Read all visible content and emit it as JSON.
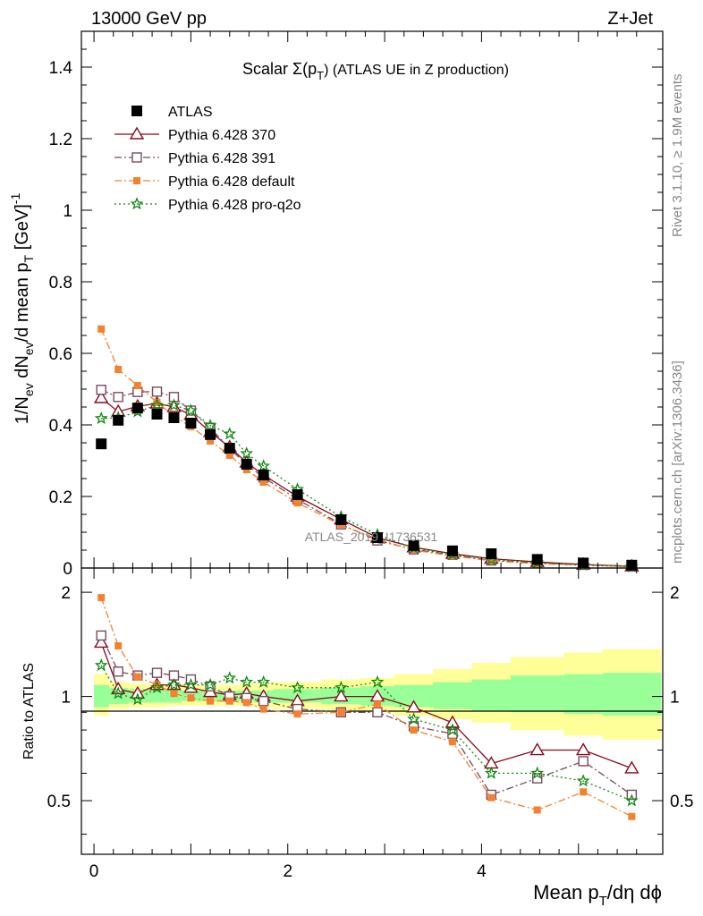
{
  "header": {
    "left": "13000 GeV pp",
    "right": "Z+Jet",
    "plot_title_main": "Scalar Σ(p",
    "plot_title_sub": "T",
    "plot_title_rest": ") (ATLAS UE in Z production)",
    "watermark": "ATLAS_2019_I1736531",
    "side_rivet": "Rivet 3.1.10, ≥ 1.9M events",
    "side_mcplots": "mcplots.cern.ch [arXiv:1306.3436]"
  },
  "axes": {
    "ylabel_main": "1/N_ev dN_ev/d mean p_T [GeV]^-1",
    "ylabel_ratio": "Ratio to ATLAS",
    "xlabel": "Mean p_T/dη dϕ"
  },
  "colors": {
    "ATLAS": "#000000",
    "p370": "#8b0a1c",
    "p391": "#7a4b5e",
    "pdefault": "#f5802e",
    "pq2o": "#0f8a0f",
    "band_inner": "#99ff99",
    "band_outer": "#ffff99"
  },
  "chart_data": [
    {
      "type": "scatter",
      "title": "Scalar Σ(p_T) (ATLAS UE in Z production)",
      "xlim": [
        -0.13,
        5.87
      ],
      "ylim": [
        0,
        1.5
      ],
      "yticks": [
        "0",
        "0.2",
        "0.4",
        "0.6",
        "0.8",
        "1",
        "1.2",
        "1.4"
      ],
      "x": [
        0.075,
        0.25,
        0.45,
        0.65,
        0.825,
        1.0,
        1.2,
        1.4,
        1.575,
        1.75,
        2.1,
        2.55,
        2.925,
        3.3,
        3.7,
        4.1,
        4.575,
        5.05,
        5.55
      ],
      "series": [
        {
          "name": "ATLAS",
          "key": "ATLAS",
          "marker": "square-filled",
          "values": [
            0.347,
            0.413,
            0.447,
            0.43,
            0.42,
            0.405,
            0.373,
            0.335,
            0.29,
            0.26,
            0.205,
            0.135,
            0.085,
            0.063,
            0.048,
            0.04,
            0.024,
            0.014,
            0.008
          ]
        },
        {
          "name": "Pythia 6.428 370",
          "key": "p370",
          "marker": "triangle-open",
          "values": [
            0.475,
            0.437,
            0.452,
            0.46,
            0.45,
            0.428,
            0.38,
            0.338,
            0.295,
            0.26,
            0.2,
            0.136,
            0.085,
            0.058,
            0.04,
            0.026,
            0.017,
            0.01,
            0.005
          ]
        },
        {
          "name": "Pythia 6.428 391",
          "key": "p391",
          "marker": "square-open",
          "values": [
            0.498,
            0.478,
            0.492,
            0.493,
            0.478,
            0.44,
            0.392,
            0.333,
            0.29,
            0.253,
            0.192,
            0.122,
            0.077,
            0.052,
            0.037,
            0.021,
            0.014,
            0.009,
            0.004
          ]
        },
        {
          "name": "Pythia 6.428 default",
          "key": "pdefault",
          "marker": "square-filled-small",
          "values": [
            0.668,
            0.555,
            0.51,
            0.463,
            0.425,
            0.395,
            0.355,
            0.315,
            0.275,
            0.24,
            0.182,
            0.12,
            0.081,
            0.05,
            0.034,
            0.02,
            0.012,
            0.008,
            0.004
          ]
        },
        {
          "name": "Pythia 6.428 pro-q2o",
          "key": "pq2o",
          "marker": "star-open",
          "values": [
            0.418,
            0.42,
            0.437,
            0.455,
            0.455,
            0.44,
            0.398,
            0.375,
            0.32,
            0.285,
            0.22,
            0.143,
            0.093,
            0.056,
            0.038,
            0.024,
            0.015,
            0.008,
            0.004
          ]
        }
      ]
    },
    {
      "type": "scatter",
      "ylabel": "Ratio to ATLAS",
      "xlabel": "Mean p_T/dη dϕ",
      "xlim": [
        -0.13,
        5.87
      ],
      "ylim": [
        0.35,
        2.35
      ],
      "log_y": true,
      "yticks": [
        "0.5",
        "1",
        "2"
      ],
      "xticks": [
        "0",
        "2",
        "4"
      ],
      "x": [
        0.075,
        0.25,
        0.45,
        0.65,
        0.825,
        1.0,
        1.2,
        1.4,
        1.575,
        1.75,
        2.1,
        2.55,
        2.925,
        3.3,
        3.7,
        4.1,
        4.575,
        5.05,
        5.55
      ],
      "band_edges": [
        0.0,
        0.15,
        0.35,
        0.55,
        0.75,
        0.9,
        1.1,
        1.3,
        1.5,
        1.65,
        1.85,
        2.35,
        2.75,
        3.1,
        3.5,
        3.9,
        4.3,
        4.85,
        5.25,
        5.85
      ],
      "band_inner": [
        [
          0.93,
          1.08
        ],
        [
          0.95,
          1.06
        ],
        [
          0.96,
          1.05
        ],
        [
          0.96,
          1.05
        ],
        [
          0.96,
          1.05
        ],
        [
          0.97,
          1.04
        ],
        [
          0.97,
          1.04
        ],
        [
          0.97,
          1.04
        ],
        [
          0.97,
          1.04
        ],
        [
          0.96,
          1.04
        ],
        [
          0.96,
          1.05
        ],
        [
          0.95,
          1.06
        ],
        [
          0.94,
          1.07
        ],
        [
          0.93,
          1.08
        ],
        [
          0.92,
          1.1
        ],
        [
          0.91,
          1.12
        ],
        [
          0.9,
          1.15
        ],
        [
          0.89,
          1.16
        ],
        [
          0.88,
          1.17
        ]
      ],
      "band_outer": [
        [
          0.88,
          1.16
        ],
        [
          0.92,
          1.1
        ],
        [
          0.93,
          1.09
        ],
        [
          0.93,
          1.08
        ],
        [
          0.94,
          1.08
        ],
        [
          0.94,
          1.08
        ],
        [
          0.94,
          1.08
        ],
        [
          0.94,
          1.08
        ],
        [
          0.94,
          1.09
        ],
        [
          0.93,
          1.09
        ],
        [
          0.92,
          1.1
        ],
        [
          0.91,
          1.12
        ],
        [
          0.9,
          1.13
        ],
        [
          0.88,
          1.16
        ],
        [
          0.86,
          1.2
        ],
        [
          0.84,
          1.25
        ],
        [
          0.8,
          1.3
        ],
        [
          0.77,
          1.34
        ],
        [
          0.75,
          1.37
        ]
      ],
      "series": [
        {
          "name": "Pythia 6.428 370",
          "key": "p370",
          "values": [
            1.43,
            1.05,
            1.02,
            1.08,
            1.08,
            1.06,
            1.03,
            1.01,
            1.02,
            1.0,
            0.97,
            1.0,
            1.0,
            0.93,
            0.84,
            0.64,
            0.7,
            0.7,
            0.62
          ]
        },
        {
          "name": "Pythia 6.428 391",
          "key": "p391",
          "values": [
            1.5,
            1.18,
            1.15,
            1.17,
            1.15,
            1.12,
            1.07,
            1.0,
            0.99,
            0.97,
            0.92,
            0.9,
            0.9,
            0.82,
            0.78,
            0.52,
            0.58,
            0.65,
            0.52
          ]
        },
        {
          "name": "Pythia 6.428 default",
          "key": "pdefault",
          "values": [
            1.93,
            1.4,
            1.14,
            1.08,
            1.02,
            0.99,
            0.97,
            0.97,
            0.96,
            0.92,
            0.89,
            0.9,
            0.95,
            0.8,
            0.74,
            0.51,
            0.47,
            0.53,
            0.45
          ]
        },
        {
          "name": "Pythia 6.428 pro-q2o",
          "key": "pq2o",
          "values": [
            1.23,
            1.02,
            0.98,
            1.06,
            1.08,
            1.08,
            1.08,
            1.13,
            1.1,
            1.1,
            1.06,
            1.06,
            1.1,
            0.86,
            0.8,
            0.6,
            0.6,
            0.57,
            0.5
          ]
        }
      ]
    }
  ]
}
